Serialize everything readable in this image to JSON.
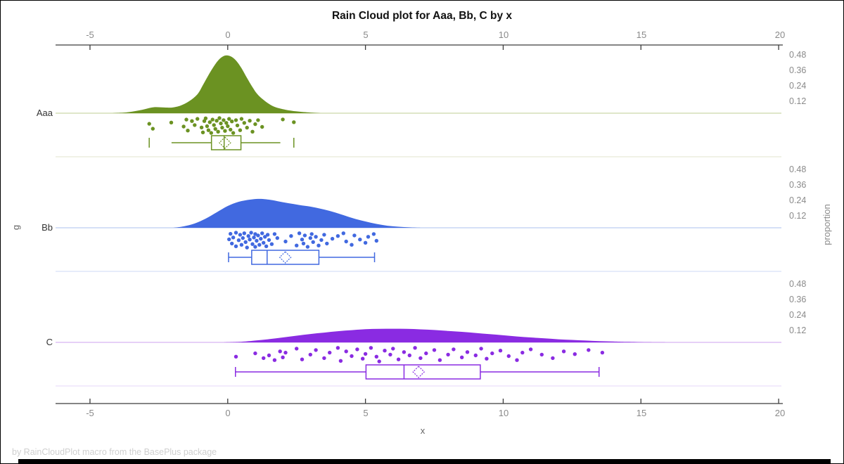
{
  "title": "Rain Cloud plot for Aaa, Bb, C by x",
  "footer": "by RainCloudPlot macro from the BasePlus package",
  "axes": {
    "x_label": "x",
    "y_label": "g",
    "right_axis_label": "proportion",
    "x_ticks": [
      "-5",
      "0",
      "5",
      "10",
      "15",
      "20"
    ],
    "proportion_ticks": [
      "0.48",
      "0.36",
      "0.24",
      "0.12"
    ]
  },
  "chart_data": {
    "type": "raincloud (half-violin + jittered strip + boxplot per group)",
    "title": "Rain Cloud plot for Aaa, Bb, C by x",
    "xlabel": "x",
    "ylabel": "g",
    "right_label": "proportion",
    "x_axis": {
      "min": -6.25,
      "max": 20.1,
      "ticks": [
        -5,
        0,
        5,
        10,
        15,
        20
      ]
    },
    "proportion_axis": {
      "ticks": [
        0.48,
        0.36,
        0.24,
        0.12
      ]
    },
    "groups": [
      {
        "name": "Aaa",
        "color": "#6B9222",
        "baseline_color": "#CCD8A9",
        "separator_color": "#E6EBD7",
        "density": [
          [
            -4.2,
            0
          ],
          [
            -3.6,
            0.008
          ],
          [
            -3.1,
            0.027
          ],
          [
            -2.7,
            0.046
          ],
          [
            -2.3,
            0.044
          ],
          [
            -2.0,
            0.044
          ],
          [
            -1.7,
            0.06
          ],
          [
            -1.4,
            0.093
          ],
          [
            -1.1,
            0.147
          ],
          [
            -0.9,
            0.218
          ],
          [
            -0.7,
            0.295
          ],
          [
            -0.5,
            0.365
          ],
          [
            -0.3,
            0.42
          ],
          [
            -0.1,
            0.447
          ],
          [
            0.1,
            0.442
          ],
          [
            0.3,
            0.409
          ],
          [
            0.5,
            0.349
          ],
          [
            0.7,
            0.273
          ],
          [
            0.9,
            0.202
          ],
          [
            1.1,
            0.142
          ],
          [
            1.4,
            0.087
          ],
          [
            1.7,
            0.049
          ],
          [
            2.1,
            0.027
          ],
          [
            2.5,
            0.014
          ],
          [
            3.0,
            0.005
          ],
          [
            3.4,
            0
          ]
        ],
        "box": {
          "min": -2.85,
          "whisker_lo": -2.04,
          "q1": -0.59,
          "median": -0.13,
          "q3": 0.48,
          "whisker_hi": 1.91,
          "max": 2.4,
          "mean": -0.1
        },
        "points": [
          [
            -2.85,
            0.35
          ],
          [
            -2.72,
            0.62
          ],
          [
            -2.05,
            0.28
          ],
          [
            -1.6,
            0.5
          ],
          [
            -1.5,
            0.12
          ],
          [
            -1.45,
            0.72
          ],
          [
            -1.3,
            0.2
          ],
          [
            -1.2,
            0.42
          ],
          [
            -1.1,
            0.08
          ],
          [
            -0.95,
            0.55
          ],
          [
            -0.9,
            0.82
          ],
          [
            -0.85,
            0.2
          ],
          [
            -0.8,
            0.05
          ],
          [
            -0.75,
            0.48
          ],
          [
            -0.7,
            0.7
          ],
          [
            -0.65,
            0.26
          ],
          [
            -0.6,
            0.85
          ],
          [
            -0.55,
            0.12
          ],
          [
            -0.5,
            0.42
          ],
          [
            -0.45,
            0.63
          ],
          [
            -0.4,
            0.18
          ],
          [
            -0.35,
            0.78
          ],
          [
            -0.3,
            0.04
          ],
          [
            -0.25,
            0.33
          ],
          [
            -0.2,
            0.56
          ],
          [
            -0.15,
            0.15
          ],
          [
            -0.1,
            0.74
          ],
          [
            -0.05,
            0.3
          ],
          [
            0.0,
            0.48
          ],
          [
            0.05,
            0.08
          ],
          [
            0.1,
            0.67
          ],
          [
            0.15,
            0.22
          ],
          [
            0.2,
            0.85
          ],
          [
            0.3,
            0.15
          ],
          [
            0.35,
            0.44
          ],
          [
            0.45,
            0.7
          ],
          [
            0.5,
            0.08
          ],
          [
            0.6,
            0.3
          ],
          [
            0.7,
            0.56
          ],
          [
            0.8,
            0.18
          ],
          [
            0.9,
            0.78
          ],
          [
            1.0,
            0.37
          ],
          [
            1.1,
            0.15
          ],
          [
            1.25,
            0.52
          ],
          [
            2.0,
            0.11
          ],
          [
            2.4,
            0.26
          ]
        ]
      },
      {
        "name": "Bb",
        "color": "#4169E0",
        "baseline_color": "#BCCDF2",
        "separator_color": "#D8E1F8",
        "density": [
          [
            -2.0,
            0
          ],
          [
            -1.6,
            0.011
          ],
          [
            -1.2,
            0.033
          ],
          [
            -0.8,
            0.071
          ],
          [
            -0.4,
            0.12
          ],
          [
            0,
            0.169
          ],
          [
            0.4,
            0.202
          ],
          [
            0.8,
            0.218
          ],
          [
            1.1,
            0.224
          ],
          [
            1.4,
            0.221
          ],
          [
            1.8,
            0.207
          ],
          [
            2.2,
            0.191
          ],
          [
            2.6,
            0.177
          ],
          [
            3.0,
            0.164
          ],
          [
            3.4,
            0.147
          ],
          [
            3.8,
            0.125
          ],
          [
            4.2,
            0.098
          ],
          [
            4.6,
            0.071
          ],
          [
            5.0,
            0.049
          ],
          [
            5.4,
            0.03
          ],
          [
            5.8,
            0.016
          ],
          [
            6.2,
            0.008
          ],
          [
            6.6,
            0.003
          ],
          [
            7.0,
            0
          ]
        ],
        "box": {
          "min": 0.03,
          "whisker_lo": 0.03,
          "q1": 0.87,
          "median": 1.43,
          "q3": 3.31,
          "whisker_hi": 5.33,
          "max": 5.33,
          "mean": 2.09
        },
        "points": [
          [
            0.05,
            0.4
          ],
          [
            0.1,
            0.1
          ],
          [
            0.15,
            0.63
          ],
          [
            0.2,
            0.3
          ],
          [
            0.3,
            0.04
          ],
          [
            0.3,
            0.78
          ],
          [
            0.4,
            0.45
          ],
          [
            0.45,
            0.15
          ],
          [
            0.5,
            0.7
          ],
          [
            0.55,
            0.33
          ],
          [
            0.6,
            0.07
          ],
          [
            0.65,
            0.55
          ],
          [
            0.7,
            0.85
          ],
          [
            0.75,
            0.22
          ],
          [
            0.8,
            0.41
          ],
          [
            0.85,
            0.04
          ],
          [
            0.9,
            0.66
          ],
          [
            0.95,
            0.3
          ],
          [
            1.0,
            0.11
          ],
          [
            1.0,
            0.81
          ],
          [
            1.05,
            0.48
          ],
          [
            1.1,
            0.19
          ],
          [
            1.15,
            0.7
          ],
          [
            1.2,
            0.37
          ],
          [
            1.25,
            0.07
          ],
          [
            1.3,
            0.59
          ],
          [
            1.35,
            0.26
          ],
          [
            1.4,
            0.78
          ],
          [
            1.45,
            0.15
          ],
          [
            1.5,
            0.44
          ],
          [
            1.6,
            0.66
          ],
          [
            1.7,
            0.11
          ],
          [
            1.8,
            0.33
          ],
          [
            2.1,
            0.52
          ],
          [
            2.3,
            0.22
          ],
          [
            2.5,
            0.74
          ],
          [
            2.6,
            0.07
          ],
          [
            2.7,
            0.41
          ],
          [
            2.75,
            0.63
          ],
          [
            2.8,
            0.19
          ],
          [
            2.9,
            0.81
          ],
          [
            3.0,
            0.33
          ],
          [
            3.05,
            0.11
          ],
          [
            3.1,
            0.55
          ],
          [
            3.2,
            0.26
          ],
          [
            3.3,
            0.74
          ],
          [
            3.4,
            0.44
          ],
          [
            3.5,
            0.15
          ],
          [
            3.6,
            0.63
          ],
          [
            3.8,
            0.37
          ],
          [
            4.0,
            0.22
          ],
          [
            4.2,
            0.07
          ],
          [
            4.3,
            0.52
          ],
          [
            4.5,
            0.7
          ],
          [
            4.6,
            0.19
          ],
          [
            4.8,
            0.41
          ],
          [
            5.0,
            0.59
          ],
          [
            5.1,
            0.26
          ],
          [
            5.3,
            0.11
          ],
          [
            5.4,
            0.48
          ]
        ]
      },
      {
        "name": "C",
        "color": "#8A2BE2",
        "baseline_color": "#D8B5F2",
        "separator_color": "#EADFF9",
        "density": [
          [
            -0.2,
            0
          ],
          [
            0.5,
            0.005
          ],
          [
            1.0,
            0.014
          ],
          [
            1.5,
            0.025
          ],
          [
            2.0,
            0.038
          ],
          [
            2.5,
            0.052
          ],
          [
            3.0,
            0.065
          ],
          [
            3.5,
            0.076
          ],
          [
            4.0,
            0.087
          ],
          [
            4.5,
            0.095
          ],
          [
            5.0,
            0.102
          ],
          [
            5.5,
            0.105
          ],
          [
            6.0,
            0.106
          ],
          [
            6.5,
            0.105
          ],
          [
            7.0,
            0.101
          ],
          [
            7.5,
            0.096
          ],
          [
            8.0,
            0.089
          ],
          [
            8.5,
            0.082
          ],
          [
            9.0,
            0.073
          ],
          [
            9.5,
            0.064
          ],
          [
            10.0,
            0.055
          ],
          [
            10.5,
            0.046
          ],
          [
            11.0,
            0.038
          ],
          [
            11.5,
            0.031
          ],
          [
            12.0,
            0.024
          ],
          [
            12.5,
            0.019
          ],
          [
            13.0,
            0.014
          ],
          [
            13.5,
            0.01
          ],
          [
            14.0,
            0.007
          ],
          [
            14.5,
            0.004
          ],
          [
            15.2,
            0.001
          ],
          [
            16.0,
            0
          ]
        ],
        "box": {
          "min": 0.28,
          "whisker_lo": 0.28,
          "q1": 5.02,
          "median": 6.4,
          "q3": 9.17,
          "whisker_hi": 13.48,
          "max": 13.48,
          "mean": 6.93
        },
        "points": [
          [
            0.3,
            0.55
          ],
          [
            1.0,
            0.37
          ],
          [
            1.3,
            0.63
          ],
          [
            1.5,
            0.48
          ],
          [
            1.7,
            0.74
          ],
          [
            1.9,
            0.26
          ],
          [
            2.0,
            0.59
          ],
          [
            2.1,
            0.33
          ],
          [
            2.5,
            0.11
          ],
          [
            2.7,
            0.7
          ],
          [
            3.0,
            0.44
          ],
          [
            3.2,
            0.19
          ],
          [
            3.5,
            0.63
          ],
          [
            3.7,
            0.33
          ],
          [
            4.0,
            0.07
          ],
          [
            4.1,
            0.78
          ],
          [
            4.3,
            0.26
          ],
          [
            4.5,
            0.52
          ],
          [
            4.7,
            0.15
          ],
          [
            4.9,
            0.66
          ],
          [
            5.0,
            0.4
          ],
          [
            5.2,
            0.07
          ],
          [
            5.4,
            0.55
          ],
          [
            5.5,
            0.81
          ],
          [
            5.7,
            0.22
          ],
          [
            5.9,
            0.44
          ],
          [
            6.0,
            0.11
          ],
          [
            6.2,
            0.7
          ],
          [
            6.4,
            0.3
          ],
          [
            6.6,
            0.48
          ],
          [
            6.8,
            0.07
          ],
          [
            7.0,
            0.63
          ],
          [
            7.2,
            0.37
          ],
          [
            7.5,
            0.19
          ],
          [
            7.7,
            0.74
          ],
          [
            8.0,
            0.44
          ],
          [
            8.2,
            0.15
          ],
          [
            8.5,
            0.59
          ],
          [
            8.7,
            0.3
          ],
          [
            9.0,
            0.48
          ],
          [
            9.2,
            0.11
          ],
          [
            9.4,
            0.66
          ],
          [
            9.6,
            0.37
          ],
          [
            9.9,
            0.22
          ],
          [
            10.2,
            0.52
          ],
          [
            10.5,
            0.74
          ],
          [
            10.7,
            0.33
          ],
          [
            11.0,
            0.15
          ],
          [
            11.4,
            0.44
          ],
          [
            11.8,
            0.63
          ],
          [
            12.2,
            0.26
          ],
          [
            12.6,
            0.41
          ],
          [
            13.1,
            0.19
          ],
          [
            13.6,
            0.33
          ]
        ]
      }
    ]
  }
}
